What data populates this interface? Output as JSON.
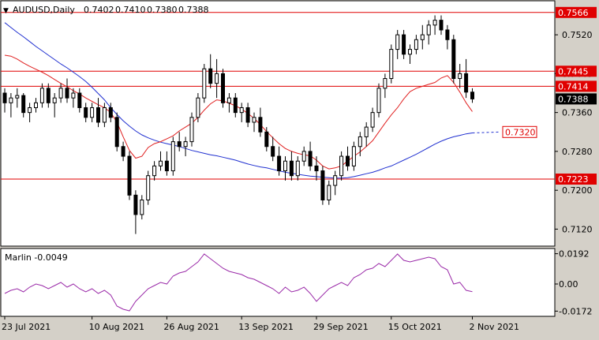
{
  "header": {
    "symbol_label": "AUDUSD,Daily",
    "ohlc": [
      "0.7402",
      "0.7410",
      "0.7380",
      "0.7388"
    ]
  },
  "colors": {
    "background": "#ffffff",
    "frame": "#d4d0c8",
    "axis": "#000000",
    "bull_candle": "#ffffff",
    "bear_candle": "#000000",
    "ma_fast": "#e02020",
    "ma_slow": "#2030d0",
    "level_line": "#e00000",
    "marlin_line": "#9a2aa8",
    "last_price_bg": "#000000"
  },
  "chart_data": [
    {
      "type": "candlestick",
      "name": "price",
      "ylim": [
        0.7085,
        0.759
      ],
      "y_ticks": [
        "0.7520",
        "0.7440",
        "0.7360",
        "0.7280",
        "0.7200",
        "0.7120"
      ],
      "x_tick_labels": [
        {
          "bar": 0,
          "label": "23 Jul 2021"
        },
        {
          "bar": 14,
          "label": "10 Aug 2021"
        },
        {
          "bar": 26,
          "label": "26 Aug 2021"
        },
        {
          "bar": 38,
          "label": "13 Sep 2021"
        },
        {
          "bar": 50,
          "label": "29 Sep 2021"
        },
        {
          "bar": 62,
          "label": "15 Oct 2021"
        },
        {
          "bar": 75,
          "label": "2 Nov 2021"
        }
      ],
      "candles": [
        [
          0.74,
          0.741,
          0.736,
          0.738
        ],
        [
          0.738,
          0.74,
          0.735,
          0.739
        ],
        [
          0.739,
          0.741,
          0.737,
          0.7395
        ],
        [
          0.7395,
          0.74,
          0.735,
          0.736
        ],
        [
          0.736,
          0.738,
          0.734,
          0.737
        ],
        [
          0.737,
          0.739,
          0.736,
          0.738
        ],
        [
          0.738,
          0.742,
          0.737,
          0.741
        ],
        [
          0.741,
          0.742,
          0.737,
          0.738
        ],
        [
          0.738,
          0.74,
          0.735,
          0.739
        ],
        [
          0.739,
          0.742,
          0.738,
          0.741
        ],
        [
          0.741,
          0.743,
          0.738,
          0.739
        ],
        [
          0.739,
          0.741,
          0.737,
          0.74
        ],
        [
          0.74,
          0.741,
          0.736,
          0.737
        ],
        [
          0.737,
          0.738,
          0.734,
          0.735
        ],
        [
          0.735,
          0.738,
          0.734,
          0.737
        ],
        [
          0.737,
          0.739,
          0.733,
          0.734
        ],
        [
          0.734,
          0.738,
          0.733,
          0.737
        ],
        [
          0.737,
          0.738,
          0.734,
          0.735
        ],
        [
          0.735,
          0.736,
          0.728,
          0.729
        ],
        [
          0.729,
          0.73,
          0.726,
          0.727
        ],
        [
          0.727,
          0.728,
          0.718,
          0.719
        ],
        [
          0.719,
          0.72,
          0.711,
          0.715
        ],
        [
          0.715,
          0.719,
          0.714,
          0.718
        ],
        [
          0.718,
          0.724,
          0.717,
          0.723
        ],
        [
          0.723,
          0.726,
          0.722,
          0.725
        ],
        [
          0.725,
          0.728,
          0.724,
          0.726
        ],
        [
          0.726,
          0.728,
          0.723,
          0.724
        ],
        [
          0.724,
          0.731,
          0.723,
          0.73
        ],
        [
          0.73,
          0.732,
          0.728,
          0.729
        ],
        [
          0.729,
          0.731,
          0.727,
          0.73
        ],
        [
          0.73,
          0.736,
          0.729,
          0.735
        ],
        [
          0.735,
          0.74,
          0.734,
          0.739
        ],
        [
          0.739,
          0.746,
          0.738,
          0.745
        ],
        [
          0.745,
          0.748,
          0.741,
          0.742
        ],
        [
          0.742,
          0.747,
          0.739,
          0.744
        ],
        [
          0.744,
          0.745,
          0.737,
          0.738
        ],
        [
          0.738,
          0.74,
          0.736,
          0.739
        ],
        [
          0.739,
          0.74,
          0.735,
          0.736
        ],
        [
          0.736,
          0.738,
          0.734,
          0.737
        ],
        [
          0.737,
          0.738,
          0.733,
          0.734
        ],
        [
          0.734,
          0.736,
          0.732,
          0.735
        ],
        [
          0.735,
          0.737,
          0.731,
          0.732
        ],
        [
          0.732,
          0.733,
          0.728,
          0.729
        ],
        [
          0.729,
          0.731,
          0.726,
          0.727
        ],
        [
          0.727,
          0.729,
          0.723,
          0.724
        ],
        [
          0.724,
          0.727,
          0.722,
          0.726
        ],
        [
          0.726,
          0.728,
          0.722,
          0.723
        ],
        [
          0.723,
          0.727,
          0.722,
          0.726
        ],
        [
          0.726,
          0.729,
          0.725,
          0.728
        ],
        [
          0.728,
          0.73,
          0.724,
          0.725
        ],
        [
          0.725,
          0.727,
          0.722,
          0.724
        ],
        [
          0.724,
          0.725,
          0.717,
          0.718
        ],
        [
          0.718,
          0.722,
          0.717,
          0.721
        ],
        [
          0.721,
          0.724,
          0.719,
          0.723
        ],
        [
          0.723,
          0.728,
          0.722,
          0.727
        ],
        [
          0.727,
          0.729,
          0.724,
          0.725
        ],
        [
          0.725,
          0.73,
          0.724,
          0.729
        ],
        [
          0.729,
          0.732,
          0.727,
          0.731
        ],
        [
          0.731,
          0.734,
          0.729,
          0.733
        ],
        [
          0.733,
          0.737,
          0.732,
          0.736
        ],
        [
          0.736,
          0.742,
          0.735,
          0.741
        ],
        [
          0.741,
          0.744,
          0.739,
          0.743
        ],
        [
          0.743,
          0.75,
          0.742,
          0.749
        ],
        [
          0.749,
          0.753,
          0.747,
          0.752
        ],
        [
          0.752,
          0.753,
          0.747,
          0.748
        ],
        [
          0.748,
          0.75,
          0.746,
          0.749
        ],
        [
          0.749,
          0.752,
          0.748,
          0.751
        ],
        [
          0.751,
          0.754,
          0.749,
          0.752
        ],
        [
          0.752,
          0.755,
          0.75,
          0.754
        ],
        [
          0.754,
          0.756,
          0.752,
          0.755
        ],
        [
          0.755,
          0.756,
          0.752,
          0.753
        ],
        [
          0.753,
          0.754,
          0.749,
          0.751
        ],
        [
          0.751,
          0.752,
          0.742,
          0.743
        ],
        [
          0.743,
          0.746,
          0.741,
          0.744
        ],
        [
          0.744,
          0.747,
          0.739,
          0.7402
        ],
        [
          0.7402,
          0.741,
          0.738,
          0.7388
        ]
      ],
      "ma_fast": [
        0.7478,
        0.7476,
        0.747,
        0.7462,
        0.7455,
        0.7449,
        0.7443,
        0.7436,
        0.7428,
        0.742,
        0.7413,
        0.7405,
        0.7398,
        0.739,
        0.7383,
        0.7376,
        0.737,
        0.736,
        0.734,
        0.731,
        0.7282,
        0.7266,
        0.727,
        0.7288,
        0.7296,
        0.73,
        0.7306,
        0.7312,
        0.7322,
        0.733,
        0.7338,
        0.735,
        0.7365,
        0.7378,
        0.7386,
        0.7384,
        0.7379,
        0.7374,
        0.7367,
        0.7358,
        0.7348,
        0.7335,
        0.7321,
        0.7308,
        0.7296,
        0.7286,
        0.728,
        0.7276,
        0.7273,
        0.7271,
        0.7262,
        0.725,
        0.7244,
        0.7246,
        0.725,
        0.726,
        0.727,
        0.7279,
        0.729,
        0.7302,
        0.732,
        0.7338,
        0.7355,
        0.737,
        0.7388,
        0.7403,
        0.741,
        0.7414,
        0.7418,
        0.7422,
        0.7431,
        0.7436,
        0.7422,
        0.7402,
        0.738,
        0.7362
      ],
      "ma_slow": [
        0.7545,
        0.7535,
        0.7525,
        0.7516,
        0.7506,
        0.7496,
        0.7487,
        0.7478,
        0.7469,
        0.746,
        0.7452,
        0.7443,
        0.7434,
        0.7424,
        0.7412,
        0.7399,
        0.7386,
        0.737,
        0.7356,
        0.7343,
        0.7332,
        0.7322,
        0.7314,
        0.7308,
        0.7303,
        0.7299,
        0.7296,
        0.7293,
        0.729,
        0.7286,
        0.7282,
        0.7279,
        0.7276,
        0.7273,
        0.7271,
        0.7268,
        0.7265,
        0.7262,
        0.7258,
        0.7254,
        0.7251,
        0.7248,
        0.7246,
        0.7243,
        0.724,
        0.7237,
        0.7235,
        0.7233,
        0.7231,
        0.7229,
        0.7228,
        0.7227,
        0.7226,
        0.7225,
        0.7225,
        0.7226,
        0.7228,
        0.7231,
        0.7234,
        0.7237,
        0.7241,
        0.7246,
        0.725,
        0.7256,
        0.7262,
        0.7268,
        0.7274,
        0.7281,
        0.7288,
        0.7295,
        0.7301,
        0.7306,
        0.731,
        0.7313,
        0.7316,
        0.7318
      ],
      "ma_slow_projection": [
        0.7318,
        0.732
      ],
      "levels": [
        {
          "value": 0.7566,
          "label": "0.7566"
        },
        {
          "value": 0.7445,
          "label": "0.7445"
        },
        {
          "value": 0.7414,
          "label": "0.7414"
        },
        {
          "value": 0.7223,
          "label": "0.7223"
        }
      ],
      "ma_slow_label": "0.7320",
      "last_price": {
        "value": 0.7388,
        "label": "0.7388"
      }
    },
    {
      "type": "line",
      "name": "Marlin",
      "title": "Marlin -0.0049",
      "ylim": [
        -0.0205,
        0.0225
      ],
      "y_ticks": [
        "0.0192",
        "0.00",
        "-0.0172"
      ],
      "y": [
        -0.006,
        -0.004,
        -0.003,
        -0.005,
        -0.002,
        0.0,
        -0.001,
        -0.003,
        -0.001,
        0.001,
        -0.002,
        0.0,
        -0.003,
        -0.005,
        -0.003,
        -0.006,
        -0.004,
        -0.007,
        -0.014,
        -0.016,
        -0.017,
        -0.011,
        -0.007,
        -0.003,
        -0.001,
        0.001,
        0.0,
        0.005,
        0.007,
        0.008,
        0.011,
        0.014,
        0.019,
        0.016,
        0.013,
        0.01,
        0.008,
        0.007,
        0.006,
        0.004,
        0.003,
        0.001,
        -0.001,
        -0.003,
        -0.006,
        -0.002,
        -0.005,
        -0.004,
        -0.002,
        -0.006,
        -0.011,
        -0.007,
        -0.003,
        -0.001,
        0.001,
        -0.001,
        0.004,
        0.006,
        0.009,
        0.01,
        0.013,
        0.011,
        0.015,
        0.019,
        0.015,
        0.014,
        0.015,
        0.016,
        0.017,
        0.016,
        0.011,
        0.009,
        0.0,
        0.001,
        -0.004,
        -0.0049
      ]
    }
  ]
}
